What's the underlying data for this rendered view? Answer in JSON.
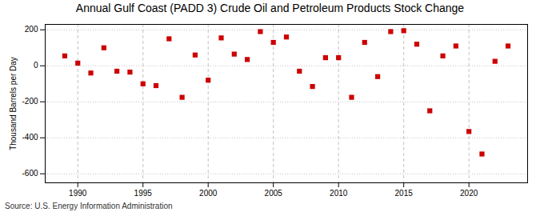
{
  "chart_data": {
    "type": "scatter",
    "title": "Annual Gulf Coast (PADD 3) Crude Oil and Petroleum Products Stock Change",
    "ylabel": "Thousand Barrels per Day",
    "annotations": [
      "Source: U.S. Energy Information Administration"
    ],
    "x": [
      1989,
      1990,
      1991,
      1992,
      1993,
      1994,
      1995,
      1996,
      1997,
      1998,
      1999,
      2000,
      2001,
      2002,
      2003,
      2004,
      2005,
      2006,
      2007,
      2008,
      2009,
      2010,
      2011,
      2012,
      2013,
      2014,
      2015,
      2016,
      2017,
      2018,
      2019,
      2020,
      2021,
      2022,
      2023
    ],
    "values": [
      55,
      15,
      -40,
      100,
      -30,
      -35,
      -100,
      -110,
      150,
      -175,
      60,
      -80,
      155,
      65,
      35,
      190,
      130,
      160,
      -30,
      -115,
      45,
      45,
      -175,
      130,
      -60,
      190,
      195,
      120,
      -250,
      55,
      110,
      -365,
      -490,
      25,
      110
    ],
    "color": "#cc0000",
    "marker": "square",
    "xlim": [
      1987.5,
      2024.5
    ],
    "xticks": [
      1990,
      1995,
      2000,
      2005,
      2010,
      2015,
      2020
    ],
    "ylim": [
      -650,
      230
    ],
    "yticks": [
      -600,
      -400,
      -200,
      0,
      200
    ],
    "grid": true
  }
}
